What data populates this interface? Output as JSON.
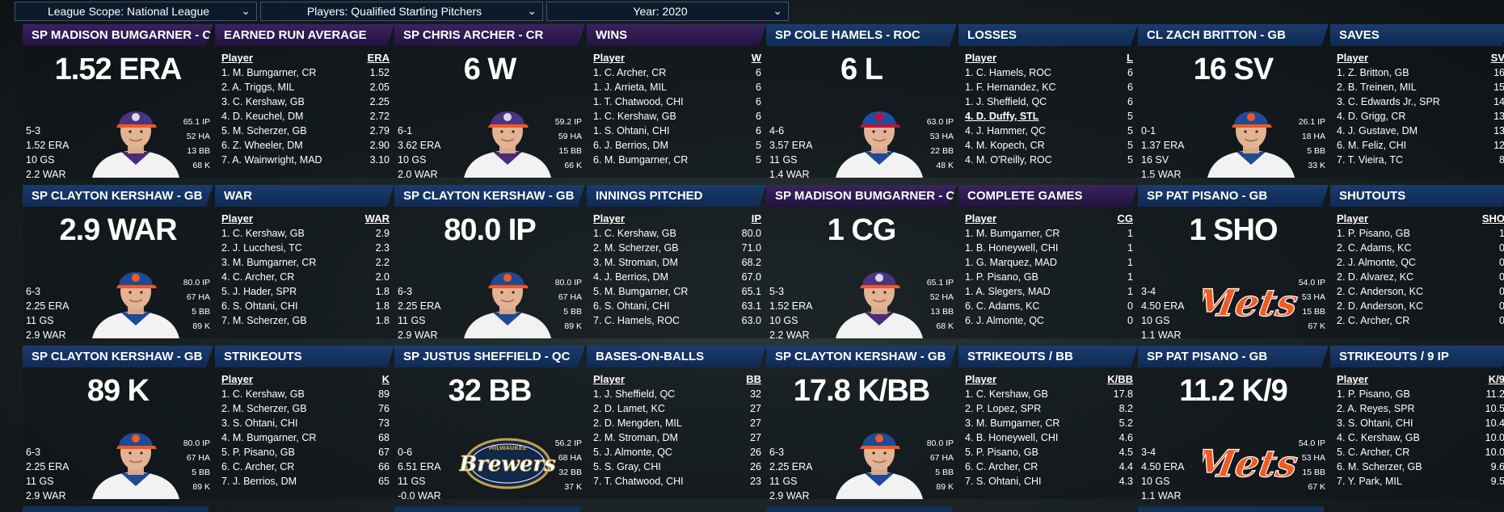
{
  "filters": {
    "scope": "League Scope: National League",
    "players": "Players: Qualified Starting Pitchers",
    "year": "Year: 2020"
  },
  "colors": {
    "header_blue": "#12305a",
    "header_purple": "#2f1b52",
    "mets_orange": "#f15a22",
    "brewers_navy": "#12284b",
    "brewers_gold": "#c5a24a"
  },
  "tiles": [
    {
      "player_header": "SP MADISON BUMGARNER - CR",
      "stat_header": "EARNED RUN AVERAGE",
      "theme": "purple",
      "big": "1.52 ERA",
      "portrait": "cr",
      "left": [
        "5-3",
        "1.52 ERA",
        "10 GS",
        "2.2 WAR"
      ],
      "right": [
        "65.1 IP",
        "52 HA",
        "13 BB",
        "68 K"
      ],
      "col_player": "Player",
      "col_stat": "ERA",
      "rows": [
        [
          "1. M. Bumgarner, CR",
          "1.52"
        ],
        [
          "2. A. Triggs, MIL",
          "2.05"
        ],
        [
          "3. C. Kershaw, GB",
          "2.25"
        ],
        [
          "4. D. Keuchel, DM",
          "2.72"
        ],
        [
          "5. M. Scherzer, GB",
          "2.79"
        ],
        [
          "6. Z. Wheeler, DM",
          "2.90"
        ],
        [
          "7. A. Wainwright, MAD",
          "3.10"
        ]
      ]
    },
    {
      "player_header": "SP CHRIS ARCHER - CR",
      "stat_header": "WINS",
      "theme": "purple",
      "big": "6 W",
      "portrait": "cr",
      "left": [
        "6-1",
        "3.62 ERA",
        "10 GS",
        "2.0 WAR"
      ],
      "right": [
        "59.2 IP",
        "59 HA",
        "15 BB",
        "66 K"
      ],
      "col_player": "Player",
      "col_stat": "W",
      "rows": [
        [
          "1. C. Archer, CR",
          "6"
        ],
        [
          "1. J. Arrieta, MIL",
          "6"
        ],
        [
          "1. T. Chatwood, CHI",
          "6"
        ],
        [
          "1. C. Kershaw, GB",
          "6"
        ],
        [
          "1. S. Ohtani, CHI",
          "6"
        ],
        [
          "6. J. Berrios, DM",
          "5"
        ],
        [
          "6. M. Bumgarner, CR",
          "5"
        ]
      ]
    },
    {
      "player_header": "SP COLE HAMELS - ROC",
      "stat_header": "LOSSES",
      "theme": "blue",
      "big": "6 L",
      "portrait": "roc",
      "left": [
        "4-6",
        "3.57 ERA",
        "11 GS",
        "1.4 WAR"
      ],
      "right": [
        "63.0 IP",
        "53 HA",
        "22 BB",
        "48 K"
      ],
      "col_player": "Player",
      "col_stat": "L",
      "rows": [
        [
          "1. C. Hamels, ROC",
          "6"
        ],
        [
          "1. F. Hernandez, KC",
          "6"
        ],
        [
          "1. J. Sheffield, QC",
          "6"
        ],
        [
          "4. D. Duffy, STL",
          "5"
        ],
        [
          "4. J. Hammer, QC",
          "5"
        ],
        [
          "4. M. Kopech, CR",
          "5"
        ],
        [
          "4. M. O'Reilly, ROC",
          "5"
        ]
      ],
      "link_row": 3
    },
    {
      "player_header": "CL ZACH BRITTON - GB",
      "stat_header": "SAVES",
      "theme": "blue",
      "big": "16 SV",
      "portrait": "gb",
      "left": [
        "0-1",
        "1.37 ERA",
        "16 SV",
        "1.5 WAR"
      ],
      "right": [
        "26.1 IP",
        "18 HA",
        "5 BB",
        "33 K"
      ],
      "col_player": "Player",
      "col_stat": "SV",
      "rows": [
        [
          "1. Z. Britton, GB",
          "16"
        ],
        [
          "2. B. Treinen, MIL",
          "15"
        ],
        [
          "3. C. Edwards Jr., SPR",
          "14"
        ],
        [
          "4. D. Grigg, CR",
          "13"
        ],
        [
          "4. J. Gustave, DM",
          "13"
        ],
        [
          "6. M. Feliz, CHI",
          "12"
        ],
        [
          "7. T. Vieira, TC",
          "8"
        ]
      ]
    },
    {
      "player_header": "SP CLAYTON KERSHAW - GB",
      "stat_header": "WAR",
      "theme": "blue",
      "big": "2.9 WAR",
      "portrait": "gb",
      "left": [
        "6-3",
        "2.25 ERA",
        "11 GS",
        "2.9 WAR"
      ],
      "right": [
        "80.0 IP",
        "67 HA",
        "5 BB",
        "89 K"
      ],
      "col_player": "Player",
      "col_stat": "WAR",
      "rows": [
        [
          "1. C. Kershaw, GB",
          "2.9"
        ],
        [
          "2. J. Lucchesi, TC",
          "2.3"
        ],
        [
          "3. M. Bumgarner, CR",
          "2.2"
        ],
        [
          "4. C. Archer, CR",
          "2.0"
        ],
        [
          "5. J. Hader, SPR",
          "1.8"
        ],
        [
          "6. S. Ohtani, CHI",
          "1.8"
        ],
        [
          "7. M. Scherzer, GB",
          "1.8"
        ]
      ]
    },
    {
      "player_header": "SP CLAYTON KERSHAW - GB",
      "stat_header": "INNINGS PITCHED",
      "theme": "blue",
      "big": "80.0 IP",
      "portrait": "gb",
      "left": [
        "6-3",
        "2.25 ERA",
        "11 GS",
        "2.9 WAR"
      ],
      "right": [
        "80.0 IP",
        "67 HA",
        "5 BB",
        "89 K"
      ],
      "col_player": "Player",
      "col_stat": "IP",
      "rows": [
        [
          "1. C. Kershaw, GB",
          "80.0"
        ],
        [
          "2. M. Scherzer, GB",
          "71.0"
        ],
        [
          "3. M. Stroman, DM",
          "68.2"
        ],
        [
          "4. J. Berrios, DM",
          "67.0"
        ],
        [
          "5. M. Bumgarner, CR",
          "65.1"
        ],
        [
          "6. S. Ohtani, CHI",
          "63.1"
        ],
        [
          "7. C. Hamels, ROC",
          "63.0"
        ]
      ]
    },
    {
      "player_header": "SP MADISON BUMGARNER - CR",
      "stat_header": "COMPLETE GAMES",
      "theme": "purple",
      "big": "1 CG",
      "portrait": "cr",
      "left": [
        "5-3",
        "1.52 ERA",
        "10 GS",
        "2.2 WAR"
      ],
      "right": [
        "65.1 IP",
        "52 HA",
        "13 BB",
        "68 K"
      ],
      "col_player": "Player",
      "col_stat": "CG",
      "rows": [
        [
          "1. M. Bumgarner, CR",
          "1"
        ],
        [
          "1. B. Honeywell, CHI",
          "1"
        ],
        [
          "1. G. Marquez, MAD",
          "1"
        ],
        [
          "1. P. Pisano, GB",
          "1"
        ],
        [
          "1. A. Slegers, MAD",
          "1"
        ],
        [
          "6. C. Adams, KC",
          "0"
        ],
        [
          "6. J. Almonte, QC",
          "0"
        ]
      ]
    },
    {
      "player_header": "SP PAT PISANO - GB",
      "stat_header": "SHUTOUTS",
      "theme": "blue",
      "big": "1 SHO",
      "portrait": "mets",
      "left": [
        "3-4",
        "4.50 ERA",
        "10 GS",
        "1.1 WAR"
      ],
      "right": [
        "54.0 IP",
        "53 HA",
        "15 BB",
        "67 K"
      ],
      "col_player": "Player",
      "col_stat": "SHO",
      "rows": [
        [
          "1. P. Pisano, GB",
          "1"
        ],
        [
          "2. C. Adams, KC",
          "0"
        ],
        [
          "2. J. Almonte, QC",
          "0"
        ],
        [
          "2. D. Alvarez, KC",
          "0"
        ],
        [
          "2. C. Anderson, KC",
          "0"
        ],
        [
          "2. D. Anderson, KC",
          "0"
        ],
        [
          "2. C. Archer, CR",
          "0"
        ]
      ]
    },
    {
      "player_header": "SP CLAYTON KERSHAW - GB",
      "stat_header": "STRIKEOUTS",
      "theme": "blue",
      "big": "89 K",
      "portrait": "gb",
      "left": [
        "6-3",
        "2.25 ERA",
        "11 GS",
        "2.9 WAR"
      ],
      "right": [
        "80.0 IP",
        "67 HA",
        "5 BB",
        "89 K"
      ],
      "col_player": "Player",
      "col_stat": "K",
      "rows": [
        [
          "1. C. Kershaw, GB",
          "89"
        ],
        [
          "2. M. Scherzer, GB",
          "76"
        ],
        [
          "3. S. Ohtani, CHI",
          "73"
        ],
        [
          "4. M. Bumgarner, CR",
          "68"
        ],
        [
          "5. P. Pisano, GB",
          "67"
        ],
        [
          "6. C. Archer, CR",
          "66"
        ],
        [
          "7. J. Berrios, DM",
          "65"
        ]
      ]
    },
    {
      "player_header": "SP JUSTUS SHEFFIELD - QC",
      "stat_header": "BASES-ON-BALLS",
      "theme": "blue",
      "big": "32 BB",
      "portrait": "brewers",
      "left": [
        "0-6",
        "6.51 ERA",
        "11 GS",
        "-0.0 WAR"
      ],
      "right": [
        "56.2 IP",
        "68 HA",
        "32 BB",
        "37 K"
      ],
      "col_player": "Player",
      "col_stat": "BB",
      "rows": [
        [
          "1. J. Sheffield, QC",
          "32"
        ],
        [
          "2. D. Lamet, KC",
          "27"
        ],
        [
          "2. D. Mengden, MIL",
          "27"
        ],
        [
          "2. M. Stroman, DM",
          "27"
        ],
        [
          "5. J. Almonte, QC",
          "26"
        ],
        [
          "5. S. Gray, CHI",
          "26"
        ],
        [
          "7. T. Chatwood, CHI",
          "23"
        ]
      ]
    },
    {
      "player_header": "SP CLAYTON KERSHAW - GB",
      "stat_header": "STRIKEOUTS / BB",
      "theme": "blue",
      "big": "17.8 K/BB",
      "portrait": "gb",
      "left": [
        "6-3",
        "2.25 ERA",
        "11 GS",
        "2.9 WAR"
      ],
      "right": [
        "80.0 IP",
        "67 HA",
        "5 BB",
        "89 K"
      ],
      "col_player": "Player",
      "col_stat": "K/BB",
      "rows": [
        [
          "1. C. Kershaw, GB",
          "17.8"
        ],
        [
          "2. P. Lopez, SPR",
          "8.2"
        ],
        [
          "3. M. Bumgarner, CR",
          "5.2"
        ],
        [
          "4. B. Honeywell, CHI",
          "4.6"
        ],
        [
          "5. P. Pisano, GB",
          "4.5"
        ],
        [
          "6. C. Archer, CR",
          "4.4"
        ],
        [
          "7. S. Ohtani, CHI",
          "4.3"
        ]
      ]
    },
    {
      "player_header": "SP PAT PISANO - GB",
      "stat_header": "STRIKEOUTS / 9 IP",
      "theme": "blue",
      "big": "11.2 K/9",
      "portrait": "mets",
      "left": [
        "3-4",
        "4.50 ERA",
        "10 GS",
        "1.1 WAR"
      ],
      "right": [
        "54.0 IP",
        "53 HA",
        "15 BB",
        "67 K"
      ],
      "col_player": "Player",
      "col_stat": "K/9",
      "rows": [
        [
          "1. P. Pisano, GB",
          "11.2"
        ],
        [
          "2. A. Reyes, SPR",
          "10.5"
        ],
        [
          "3. S. Ohtani, CHI",
          "10.4"
        ],
        [
          "4. C. Kershaw, GB",
          "10.0"
        ],
        [
          "5. C. Archer, CR",
          "10.0"
        ],
        [
          "6. M. Scherzer, GB",
          "9.6"
        ],
        [
          "7. Y. Park, MIL",
          "9.5"
        ]
      ]
    }
  ],
  "logos": {
    "mets": "Mets",
    "brewers": "Brewers",
    "brewers_top": "MILWAUKEE"
  }
}
